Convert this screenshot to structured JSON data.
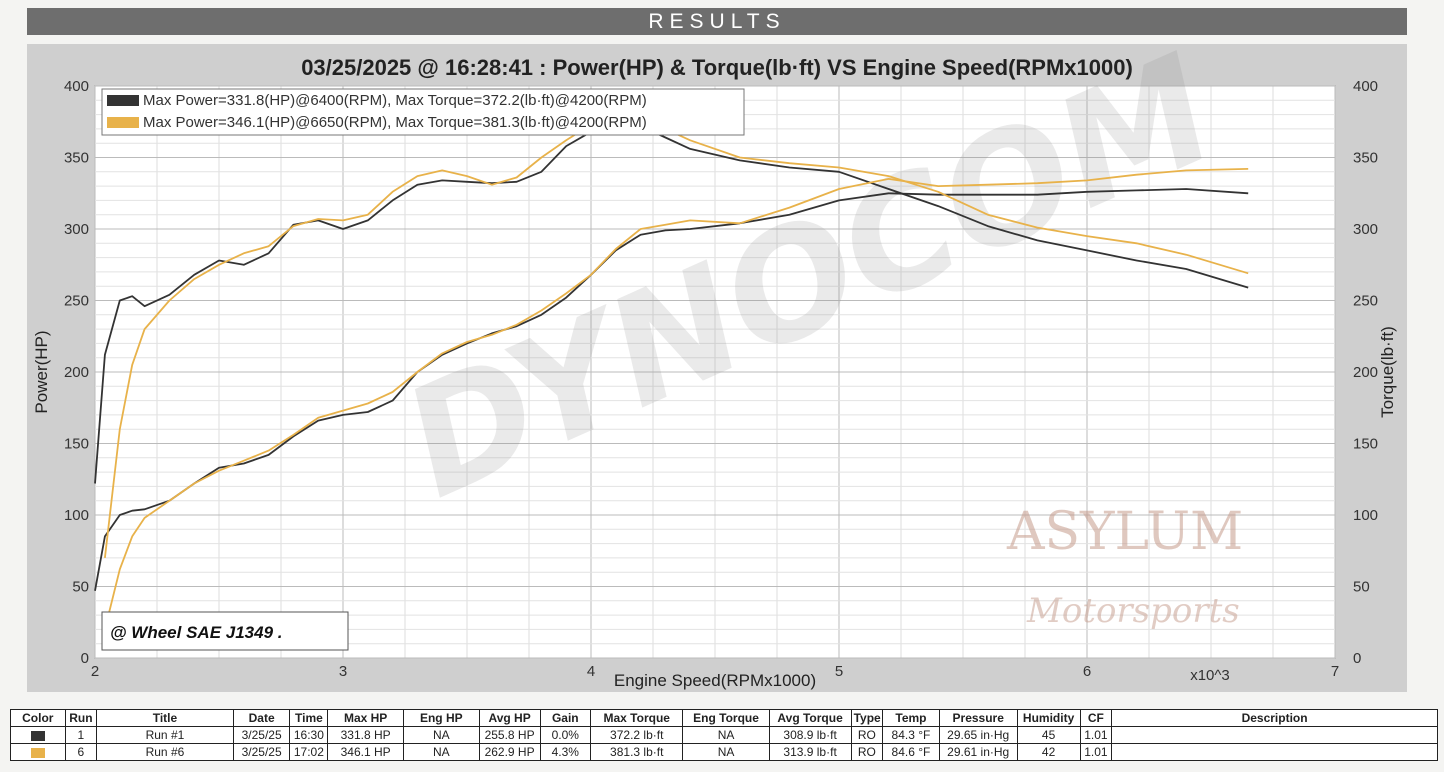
{
  "header": {
    "title": "RESULTS"
  },
  "chart_data": {
    "type": "line",
    "title": "03/25/2025 @ 16:28:41 : Power(HP) & Torque(lb·ft) VS Engine Speed(RPMx1000)",
    "xlabel": "Engine Speed(RPMx1000)",
    "x_multiplier": "x10^3",
    "ylabel_left": "Power(HP)",
    "ylabel_right": "Torque(lb·ft)",
    "xlim": [
      2,
      7
    ],
    "ylim_left": [
      0,
      400
    ],
    "ylim_right": [
      0,
      400
    ],
    "x_ticks": [
      "2",
      "3",
      "4",
      "5",
      "6",
      "7"
    ],
    "y_ticks_left": [
      "0",
      "50",
      "100",
      "150",
      "200",
      "250",
      "300",
      "350",
      "400"
    ],
    "y_ticks_right": [
      "0",
      "50",
      "100",
      "150",
      "200",
      "250",
      "300",
      "350",
      "400"
    ],
    "grid": true,
    "legend": [
      {
        "text": "Max Power=331.8(HP)@6400(RPM), Max Torque=372.2(lb·ft)@4200(RPM)",
        "color": "#333333"
      },
      {
        "text": "Max Power=346.1(HP)@6650(RPM), Max Torque=381.3(lb·ft)@4200(RPM)",
        "color": "#e8b24a"
      }
    ],
    "legend_position": "top-left",
    "annotation": "@ Wheel SAE J1349  .",
    "series": [
      {
        "color": "#333333",
        "axis": "left",
        "x": [
          2.0,
          2.04,
          2.1,
          2.15,
          2.2,
          2.3,
          2.4,
          2.5,
          2.6,
          2.7,
          2.8,
          2.9,
          3.0,
          3.1,
          3.2,
          3.3,
          3.4,
          3.5,
          3.6,
          3.7,
          3.8,
          3.9,
          4.0,
          4.1,
          4.2,
          4.3,
          4.4,
          4.6,
          4.8,
          5.0,
          5.2,
          5.4,
          5.6,
          5.8,
          6.0,
          6.2,
          6.4,
          6.65
        ],
        "y": [
          47,
          85,
          100,
          103,
          104,
          110,
          122,
          133,
          136,
          142,
          155,
          166,
          170,
          172,
          180,
          200,
          212,
          220,
          227,
          232,
          240,
          252,
          268,
          285,
          296,
          299,
          300,
          304,
          310,
          320,
          325,
          324,
          324,
          324,
          326,
          327,
          328,
          325
        ]
      },
      {
        "color": "#333333",
        "axis": "right",
        "x": [
          2.0,
          2.04,
          2.1,
          2.15,
          2.2,
          2.3,
          2.4,
          2.5,
          2.6,
          2.7,
          2.8,
          2.9,
          3.0,
          3.1,
          3.2,
          3.3,
          3.4,
          3.5,
          3.6,
          3.7,
          3.8,
          3.9,
          4.0,
          4.1,
          4.2,
          4.3,
          4.4,
          4.6,
          4.8,
          5.0,
          5.2,
          5.4,
          5.6,
          5.8,
          6.0,
          6.2,
          6.4,
          6.65
        ],
        "y": [
          122,
          212,
          250,
          253,
          246,
          254,
          268,
          278,
          275,
          283,
          303,
          306,
          300,
          306,
          320,
          331,
          334,
          333,
          332,
          333,
          340,
          358,
          368,
          372,
          372,
          364,
          356,
          348,
          343,
          340,
          328,
          316,
          302,
          292,
          285,
          278,
          272,
          259
        ]
      },
      {
        "color": "#e8b24a",
        "axis": "left",
        "x": [
          2.04,
          2.1,
          2.15,
          2.2,
          2.3,
          2.4,
          2.5,
          2.6,
          2.7,
          2.8,
          2.9,
          3.0,
          3.1,
          3.2,
          3.3,
          3.4,
          3.5,
          3.6,
          3.7,
          3.8,
          3.9,
          4.0,
          4.1,
          4.2,
          4.3,
          4.4,
          4.6,
          4.8,
          5.0,
          5.2,
          5.4,
          5.6,
          5.8,
          6.0,
          6.2,
          6.4,
          6.65
        ],
        "y": [
          20,
          62,
          85,
          98,
          110,
          122,
          131,
          138,
          145,
          156,
          168,
          173,
          178,
          186,
          200,
          213,
          221,
          226,
          233,
          243,
          255,
          268,
          286,
          300,
          303,
          306,
          304,
          315,
          328,
          335,
          330,
          331,
          332,
          334,
          338,
          341,
          342
        ]
      },
      {
        "color": "#e8b24a",
        "axis": "right",
        "x": [
          2.04,
          2.1,
          2.15,
          2.2,
          2.3,
          2.4,
          2.5,
          2.6,
          2.7,
          2.8,
          2.9,
          3.0,
          3.1,
          3.2,
          3.3,
          3.4,
          3.5,
          3.6,
          3.7,
          3.8,
          3.9,
          4.0,
          4.1,
          4.2,
          4.3,
          4.4,
          4.6,
          4.8,
          5.0,
          5.2,
          5.4,
          5.6,
          5.8,
          6.0,
          6.2,
          6.4,
          6.65
        ],
        "y": [
          70,
          160,
          205,
          230,
          250,
          265,
          275,
          283,
          288,
          302,
          307,
          306,
          310,
          326,
          337,
          341,
          337,
          331,
          336,
          350,
          362,
          373,
          378,
          381,
          370,
          362,
          350,
          346,
          343,
          337,
          326,
          310,
          301,
          295,
          290,
          282,
          269
        ]
      }
    ]
  },
  "table": {
    "headers": [
      "Color",
      "Run",
      "Title",
      "Date",
      "Time",
      "Max HP",
      "Eng HP",
      "Avg HP",
      "Gain",
      "Max Torque",
      "Eng Torque",
      "Avg Torque",
      "Type",
      "Temp",
      "Pressure",
      "Humidity",
      "CF",
      "Description"
    ],
    "rows": [
      {
        "swatch": "#333333",
        "cells": [
          "1",
          "Run #1",
          "3/25/25",
          "16:30",
          "331.8 HP",
          "NA",
          "255.8 HP",
          "0.0%",
          "372.2 lb·ft",
          "NA",
          "308.9 lb·ft",
          "RO",
          "84.3 °F",
          "29.65 in·Hg",
          "45",
          "1.01",
          ""
        ]
      },
      {
        "swatch": "#e8b24a",
        "cells": [
          "6",
          "Run #6",
          "3/25/25",
          "17:02",
          "346.1 HP",
          "NA",
          "262.9 HP",
          "4.3%",
          "381.3 lb·ft",
          "NA",
          "313.9 lb·ft",
          "RO",
          "84.6 °F",
          "29.61 in·Hg",
          "42",
          "1.01",
          ""
        ]
      }
    ]
  }
}
